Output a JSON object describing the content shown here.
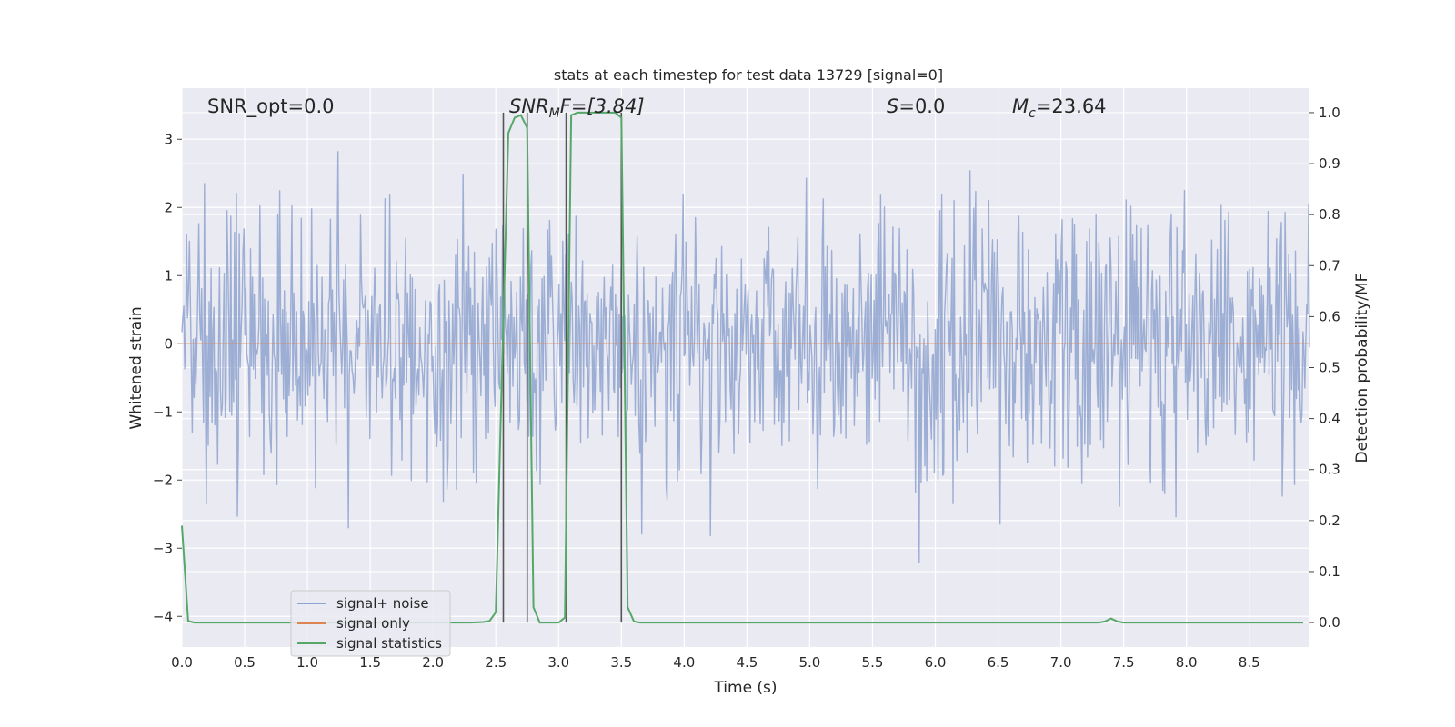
{
  "chart_data": {
    "type": "line",
    "title": "stats at each timestep for test data 13729 [signal=0]",
    "xlabel": "Time (s)",
    "ylabel": "Whitened strain",
    "y2label": "Detection probability/MF",
    "xlim": [
      0.0,
      8.98
    ],
    "ylim": [
      -4.45,
      3.75
    ],
    "y2lim": [
      -0.048,
      1.048
    ],
    "x_ticks": [
      0.0,
      0.5,
      1.0,
      1.5,
      2.0,
      2.5,
      3.0,
      3.5,
      4.0,
      4.5,
      5.0,
      5.5,
      6.0,
      6.5,
      7.0,
      7.5,
      8.0,
      8.5
    ],
    "x_tick_labels": [
      "0.0",
      "0.5",
      "1.0",
      "1.5",
      "2.0",
      "2.5",
      "3.0",
      "3.5",
      "4.0",
      "4.5",
      "5.0",
      "5.5",
      "6.0",
      "6.5",
      "7.0",
      "7.5",
      "8.0",
      "8.5"
    ],
    "y_ticks": [
      3,
      2,
      1,
      0,
      -1,
      -2,
      -3,
      -4
    ],
    "y_tick_labels": [
      "3",
      "2",
      "1",
      "0",
      "−1",
      "−2",
      "−3",
      "−4"
    ],
    "y2_ticks": [
      1.0,
      0.9,
      0.8,
      0.7,
      0.6,
      0.5,
      0.4,
      0.3,
      0.2,
      0.1,
      0.0
    ],
    "y2_tick_labels": [
      "1.0",
      "0.9",
      "0.8",
      "0.7",
      "0.6",
      "0.5",
      "0.4",
      "0.3",
      "0.2",
      "0.1",
      "0.0"
    ],
    "grid": true,
    "legend_position": "lower-left",
    "annotations": {
      "snr_opt": "SNR_opt=0.0",
      "snr_mf_main": "SNR",
      "snr_mf_sub": "M",
      "snr_mf_tail": "F=[3.84]",
      "s_symbol": "S",
      "s_value": "=0.0",
      "mc_symbol": "M",
      "mc_sub": "c",
      "mc_value": "=23.64"
    },
    "series": [
      {
        "name": "signal+ noise",
        "color": "#8fa3cf",
        "axis": "left",
        "description_stats": {
          "std": 1.0,
          "min": -3.85,
          "max": 3.5,
          "n_points": 1200,
          "seed": 13729
        }
      },
      {
        "name": "signal only",
        "color": "#dd8452",
        "axis": "left",
        "x": [
          0.0,
          8.98
        ],
        "y": [
          0.0,
          0.0
        ]
      },
      {
        "name": "signal statistics",
        "color": "#55a868",
        "axis": "right",
        "x": [
          0.0,
          0.05,
          0.1,
          0.5,
          1.0,
          1.5,
          2.0,
          2.3,
          2.4,
          2.45,
          2.5,
          2.55,
          2.6,
          2.65,
          2.7,
          2.75,
          2.8,
          2.85,
          2.9,
          3.0,
          3.05,
          3.1,
          3.15,
          3.2,
          3.3,
          3.4,
          3.45,
          3.5,
          3.55,
          3.6,
          3.65,
          4.0,
          5.0,
          6.0,
          7.0,
          7.3,
          7.35,
          7.4,
          7.45,
          7.5,
          8.0,
          8.5,
          8.93
        ],
        "y": [
          0.19,
          0.003,
          0.0,
          0.0,
          0.0,
          0.0,
          0.0,
          0.0,
          0.001,
          0.003,
          0.02,
          0.5,
          0.96,
          0.99,
          0.995,
          0.97,
          0.03,
          0.0,
          0.0,
          0.0,
          0.01,
          0.995,
          1.0,
          1.0,
          1.0,
          1.0,
          1.0,
          0.99,
          0.03,
          0.002,
          0.0,
          0.0,
          0.0,
          0.0,
          0.0,
          0.0,
          0.002,
          0.008,
          0.002,
          0.0,
          0.0,
          0.0,
          0.0
        ]
      }
    ],
    "marker_lines": {
      "color": "#555555",
      "x": [
        2.56,
        2.75,
        3.06,
        3.5
      ],
      "y2_range": [
        0.0,
        1.0
      ]
    }
  }
}
